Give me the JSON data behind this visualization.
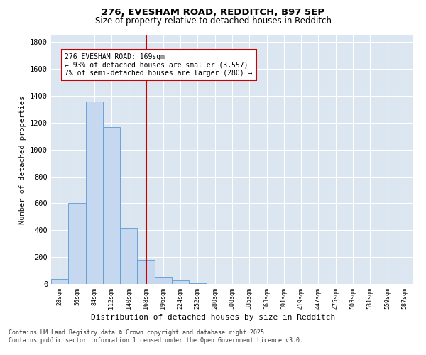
{
  "title_line1": "276, EVESHAM ROAD, REDDITCH, B97 5EP",
  "title_line2": "Size of property relative to detached houses in Redditch",
  "xlabel": "Distribution of detached houses by size in Redditch",
  "ylabel": "Number of detached properties",
  "bin_labels": [
    "28sqm",
    "56sqm",
    "84sqm",
    "112sqm",
    "140sqm",
    "168sqm",
    "196sqm",
    "224sqm",
    "252sqm",
    "280sqm",
    "308sqm",
    "335sqm",
    "363sqm",
    "391sqm",
    "419sqm",
    "447sqm",
    "475sqm",
    "503sqm",
    "531sqm",
    "559sqm",
    "587sqm"
  ],
  "bar_values": [
    35,
    600,
    1360,
    1170,
    420,
    180,
    55,
    25,
    5,
    0,
    0,
    0,
    0,
    0,
    0,
    0,
    0,
    0,
    0,
    0,
    0
  ],
  "bar_color": "#c5d8f0",
  "bar_edge_color": "#5b9bd5",
  "annotation_text_line1": "276 EVESHAM ROAD: 169sqm",
  "annotation_text_line2": "← 93% of detached houses are smaller (3,557)",
  "annotation_text_line3": "7% of semi-detached houses are larger (280) →",
  "annotation_box_color": "#ffffff",
  "annotation_box_edge_color": "#cc0000",
  "red_line_color": "#cc0000",
  "red_line_bin": 5,
  "ylim": [
    0,
    1850
  ],
  "yticks": [
    0,
    200,
    400,
    600,
    800,
    1000,
    1200,
    1400,
    1600,
    1800
  ],
  "background_color": "#ffffff",
  "plot_bg_color": "#dce6f1",
  "footer_line1": "Contains HM Land Registry data © Crown copyright and database right 2025.",
  "footer_line2": "Contains public sector information licensed under the Open Government Licence v3.0."
}
